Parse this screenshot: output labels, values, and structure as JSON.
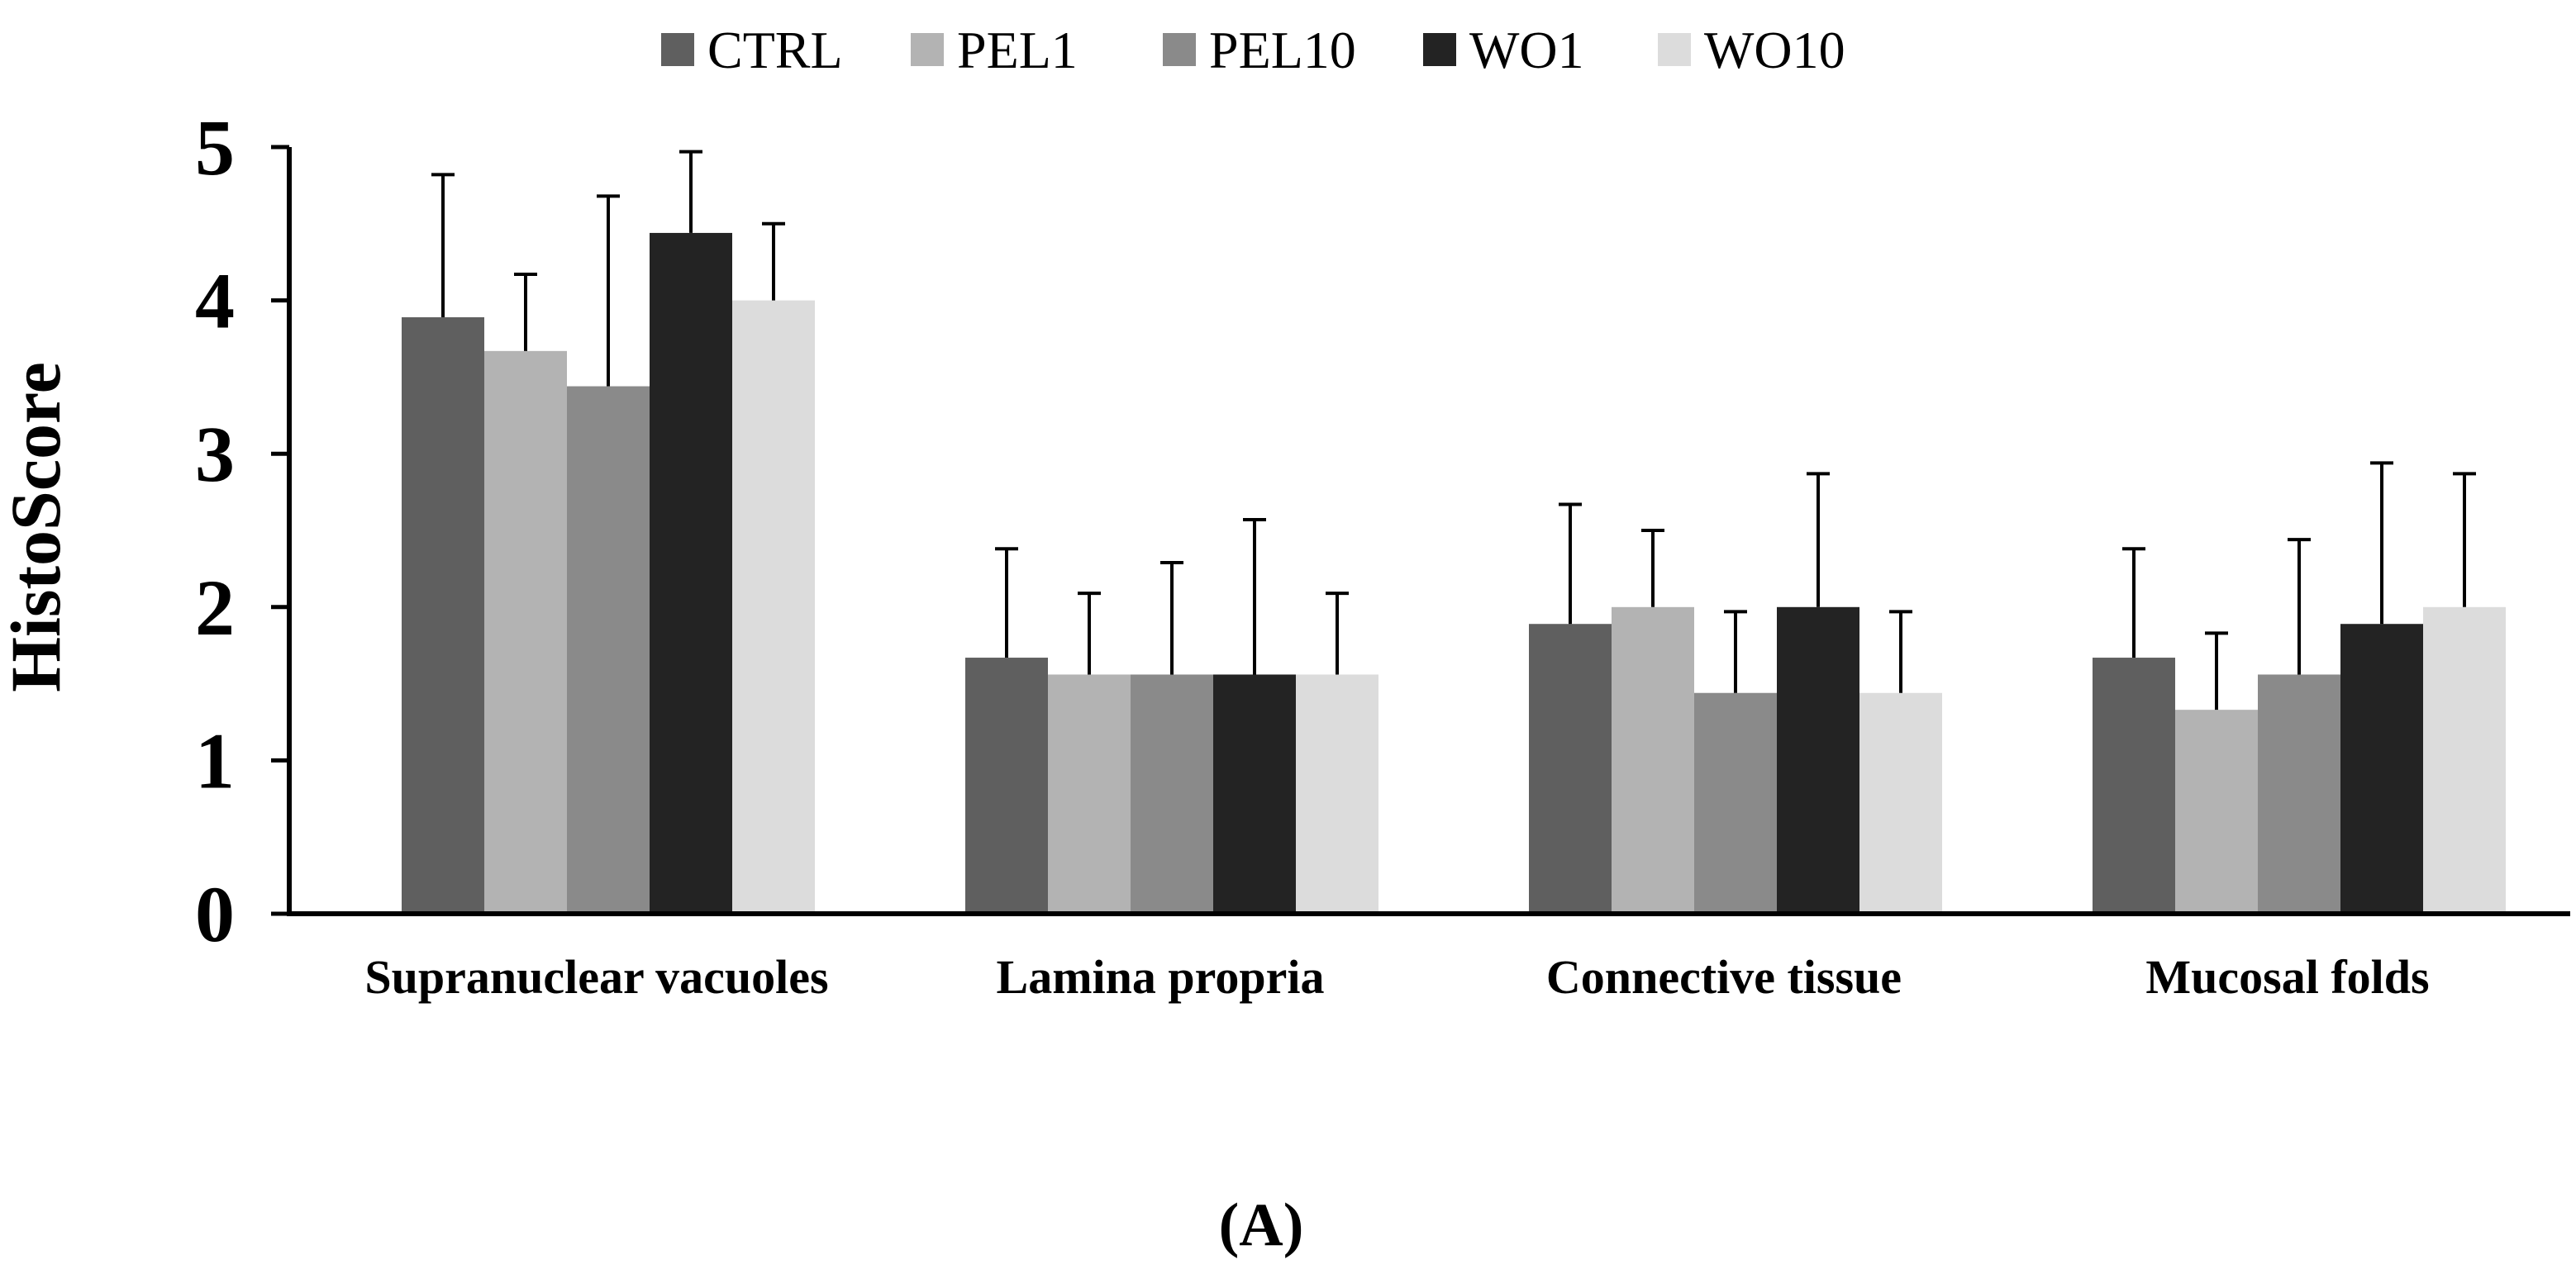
{
  "chart_data": {
    "type": "bar",
    "title": "",
    "xlabel": "",
    "ylabel": "HistoScore",
    "panel_label": "(A)",
    "ylim": [
      0,
      5
    ],
    "yticks": [
      "0",
      "1",
      "2",
      "3",
      "4",
      "5"
    ],
    "grid": false,
    "legend_position": "top",
    "categories": [
      "Supranuclear vacuoles",
      "Lamina propria",
      "Connective tissue",
      "Mucosal folds"
    ],
    "series": [
      {
        "name": "CTRL",
        "color": "#5f5f5f",
        "values": [
          3.89,
          1.67,
          1.89,
          1.67
        ],
        "errors": [
          0.93,
          0.71,
          0.78,
          0.71
        ]
      },
      {
        "name": "PEL1",
        "color": "#b3b3b3",
        "values": [
          3.67,
          1.56,
          2.0,
          1.33
        ],
        "errors": [
          0.5,
          0.53,
          0.5,
          0.5
        ]
      },
      {
        "name": "PEL10",
        "color": "#8a8a8a",
        "values": [
          3.44,
          1.56,
          1.44,
          1.56
        ],
        "errors": [
          1.24,
          0.73,
          0.53,
          0.88
        ]
      },
      {
        "name": "WO1",
        "color": "#232323",
        "values": [
          4.44,
          1.56,
          2.0,
          1.89
        ],
        "errors": [
          0.53,
          1.01,
          0.87,
          1.05
        ]
      },
      {
        "name": "WO10",
        "color": "#dcdcdc",
        "values": [
          4.0,
          1.56,
          1.44,
          2.0
        ],
        "errors": [
          0.5,
          0.53,
          0.53,
          0.87
        ]
      }
    ]
  }
}
